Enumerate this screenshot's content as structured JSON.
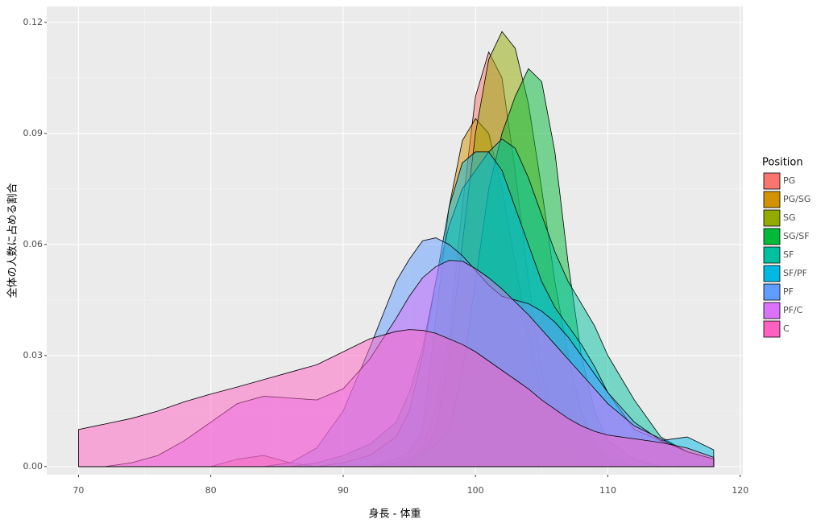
{
  "chart_data": {
    "type": "density",
    "x_label": "身長 - 体重",
    "y_label": "全体の人数に占める割合",
    "legend_title": "Position",
    "x": [
      70,
      72,
      74,
      76,
      78,
      80,
      82,
      84,
      86,
      88,
      90,
      92,
      94,
      95,
      96,
      97,
      98,
      99,
      100,
      101,
      102,
      103,
      104,
      105,
      106,
      107,
      108,
      109,
      110,
      112,
      114,
      116,
      118
    ],
    "series": [
      {
        "name": "PG",
        "color": "#F8766D",
        "values": [
          0,
          0,
          0,
          0,
          0,
          0,
          0.002,
          0.003,
          0.001,
          0,
          0,
          0,
          0,
          0.001,
          0.005,
          0.015,
          0.035,
          0.07,
          0.1,
          0.112,
          0.105,
          0.08,
          0.05,
          0.025,
          0.01,
          0.003,
          0,
          0,
          0,
          0,
          0,
          0,
          0
        ]
      },
      {
        "name": "PG/SG",
        "color": "#D39200",
        "values": [
          0,
          0,
          0,
          0,
          0,
          0,
          0,
          0,
          0,
          0,
          0,
          0,
          0.002,
          0.004,
          0.01,
          0.04,
          0.07,
          0.088,
          0.094,
          0.09,
          0.075,
          0.055,
          0.035,
          0.02,
          0.01,
          0.004,
          0.001,
          0,
          0,
          0,
          0,
          0,
          0
        ]
      },
      {
        "name": "SG",
        "color": "#93AA00",
        "values": [
          0,
          0,
          0,
          0,
          0,
          0,
          0,
          0,
          0,
          0,
          0,
          0,
          0,
          0.001,
          0.003,
          0.01,
          0.03,
          0.06,
          0.09,
          0.11,
          0.1175,
          0.113,
          0.098,
          0.075,
          0.05,
          0.03,
          0.015,
          0.006,
          0.002,
          0,
          0,
          0,
          0
        ]
      },
      {
        "name": "SG/SF",
        "color": "#00BA38",
        "values": [
          0,
          0,
          0,
          0,
          0,
          0,
          0,
          0,
          0,
          0,
          0,
          0,
          0.001,
          0.002,
          0.004,
          0.006,
          0.01,
          0.025,
          0.05,
          0.075,
          0.09,
          0.1,
          0.1075,
          0.104,
          0.085,
          0.055,
          0.03,
          0.015,
          0.007,
          0.002,
          0,
          0,
          0
        ]
      },
      {
        "name": "SF",
        "color": "#00C19F",
        "values": [
          0,
          0,
          0,
          0,
          0,
          0,
          0,
          0,
          0,
          0.001,
          0.003,
          0.006,
          0.012,
          0.02,
          0.032,
          0.05,
          0.065,
          0.075,
          0.08,
          0.085,
          0.0885,
          0.086,
          0.078,
          0.068,
          0.058,
          0.05,
          0.044,
          0.038,
          0.03,
          0.018,
          0.008,
          0.004,
          0.002
        ]
      },
      {
        "name": "SF/PF",
        "color": "#00B9E3",
        "values": [
          0,
          0,
          0,
          0,
          0,
          0,
          0,
          0,
          0,
          0,
          0.001,
          0.003,
          0.008,
          0.015,
          0.03,
          0.05,
          0.07,
          0.082,
          0.085,
          0.085,
          0.08,
          0.07,
          0.06,
          0.05,
          0.043,
          0.038,
          0.033,
          0.027,
          0.02,
          0.01,
          0.007,
          0.008,
          0.0045
        ]
      },
      {
        "name": "PF",
        "color": "#619CFF",
        "values": [
          0,
          0,
          0,
          0,
          0,
          0,
          0,
          0,
          0.001,
          0.005,
          0.015,
          0.032,
          0.05,
          0.056,
          0.061,
          0.0618,
          0.06,
          0.057,
          0.053,
          0.049,
          0.046,
          0.045,
          0.044,
          0.042,
          0.039,
          0.035,
          0.03,
          0.025,
          0.02,
          0.012,
          0.007,
          0.004,
          0.002
        ]
      },
      {
        "name": "PF/C",
        "color": "#DB72FB",
        "values": [
          0,
          0,
          0.001,
          0.003,
          0.007,
          0.012,
          0.017,
          0.019,
          0.0185,
          0.018,
          0.021,
          0.029,
          0.04,
          0.046,
          0.051,
          0.054,
          0.0557,
          0.0555,
          0.0535,
          0.051,
          0.048,
          0.0445,
          0.041,
          0.037,
          0.033,
          0.029,
          0.025,
          0.021,
          0.017,
          0.011,
          0.0075,
          0.004,
          0.002
        ]
      },
      {
        "name": "C",
        "color": "#FF61C3",
        "values": [
          0.01,
          0.0115,
          0.013,
          0.015,
          0.0175,
          0.0196,
          0.0215,
          0.0235,
          0.0255,
          0.0275,
          0.031,
          0.0345,
          0.0365,
          0.037,
          0.0368,
          0.036,
          0.0345,
          0.033,
          0.031,
          0.0285,
          0.026,
          0.0235,
          0.021,
          0.018,
          0.0155,
          0.013,
          0.011,
          0.0095,
          0.0085,
          0.0075,
          0.0065,
          0.005,
          0.0025
        ]
      }
    ],
    "xlim": [
      67.6,
      120.2
    ],
    "ylim": [
      -0.0022,
      0.1243
    ],
    "xticks": [
      70,
      80,
      90,
      100,
      110,
      120
    ],
    "yticks": [
      {
        "value": 0,
        "label": "0.00"
      },
      0.03,
      0.06,
      0.09,
      0.12
    ],
    "grid": true,
    "legend_position": "right"
  }
}
